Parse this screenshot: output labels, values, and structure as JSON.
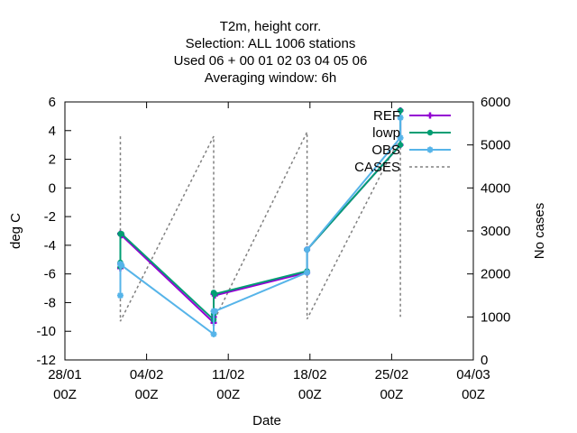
{
  "chart_data": {
    "type": "line",
    "title_lines": [
      "T2m, height corr.",
      "Selection: ALL   1006 stations",
      "Used  06  + 00 01 02 03 04 05 06",
      "Averaging window:  6h"
    ],
    "xlabel": "Date",
    "ylabel": "deg C",
    "y2label": "No cases",
    "ylim": [
      -12,
      6
    ],
    "y2lim": [
      0,
      6000
    ],
    "yticks": [
      "6",
      "4",
      "2",
      "0",
      "-2",
      "-4",
      "-6",
      "-8",
      "-10",
      "-12"
    ],
    "y2ticks": [
      "6000",
      "5000",
      "4000",
      "3000",
      "2000",
      "1000",
      "0"
    ],
    "xlim_days": [
      0,
      35
    ],
    "xticks": [
      {
        "day": 0,
        "line1": "28/01",
        "line2": "00Z"
      },
      {
        "day": 7,
        "line1": "04/02",
        "line2": "00Z"
      },
      {
        "day": 14,
        "line1": "11/02",
        "line2": "00Z"
      },
      {
        "day": 21,
        "line1": "18/02",
        "line2": "00Z"
      },
      {
        "day": 28,
        "line1": "25/02",
        "line2": "00Z"
      },
      {
        "day": 35,
        "line1": "04/03",
        "line2": "00Z"
      }
    ],
    "legend_position": "top-right",
    "series": [
      {
        "name": "REF",
        "color": "#9400d3",
        "marker": "plus",
        "axis": "y",
        "points": [
          [
            4.75,
            -5.6
          ],
          [
            4.75,
            -5.3
          ],
          [
            4.75,
            -3.2
          ],
          [
            4.85,
            -3.3
          ],
          [
            12.75,
            -9.4
          ],
          [
            12.75,
            -9.0
          ],
          [
            12.75,
            -7.4
          ],
          [
            12.85,
            -7.5
          ],
          [
            20.75,
            -5.9
          ],
          [
            20.75,
            -4.3
          ],
          [
            28.75,
            3.0
          ],
          [
            28.75,
            5.4
          ]
        ]
      },
      {
        "name": "lowp",
        "color": "#009e73",
        "marker": "circle",
        "axis": "y",
        "points": [
          [
            4.75,
            -5.5
          ],
          [
            4.75,
            -5.2
          ],
          [
            4.75,
            -3.2
          ],
          [
            4.85,
            -3.2
          ],
          [
            12.75,
            -9.2
          ],
          [
            12.75,
            -8.8
          ],
          [
            12.75,
            -7.3
          ],
          [
            12.85,
            -7.4
          ],
          [
            20.75,
            -5.8
          ],
          [
            20.75,
            -4.3
          ],
          [
            28.75,
            3.0
          ],
          [
            28.75,
            5.4
          ]
        ]
      },
      {
        "name": "OBS",
        "color": "#56b4e9",
        "marker": "star",
        "axis": "y",
        "points": [
          [
            4.75,
            -7.5
          ],
          [
            4.75,
            -5.3
          ],
          [
            4.85,
            -5.4
          ],
          [
            12.75,
            -10.2
          ],
          [
            12.75,
            -8.6
          ],
          [
            12.85,
            -8.6
          ],
          [
            20.75,
            -5.9
          ],
          [
            20.75,
            -4.3
          ],
          [
            28.75,
            3.5
          ],
          [
            28.75,
            4.9
          ]
        ]
      },
      {
        "name": "CASES",
        "color": "#808080",
        "marker": "none",
        "dash": true,
        "axis": "y2",
        "points": [
          [
            4.75,
            5200
          ],
          [
            4.75,
            900
          ],
          [
            12.75,
            5200
          ],
          [
            12.75,
            900
          ],
          [
            20.75,
            5300
          ],
          [
            20.75,
            950
          ],
          [
            28.75,
            5200
          ],
          [
            28.75,
            1000
          ]
        ]
      }
    ]
  }
}
